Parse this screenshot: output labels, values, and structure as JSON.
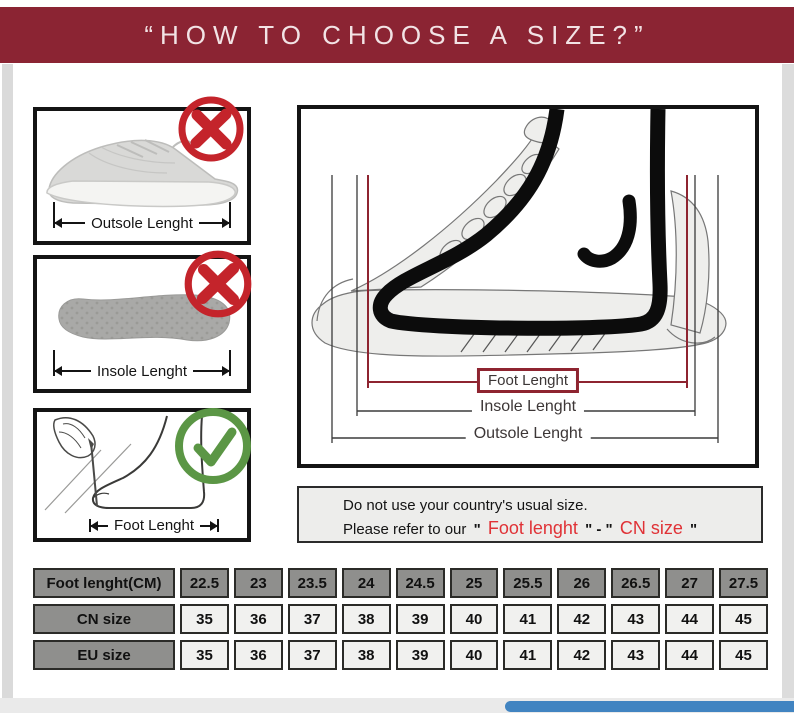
{
  "header": {
    "title": "“HOW TO CHOOSE A SIZE?”"
  },
  "colors": {
    "header_bg": "#8B2433",
    "header_text": "#F2E3E5",
    "wrong_mark_red": "#C4242B",
    "right_mark_green": "#5B9645",
    "foot_length_red": "#8E2430",
    "note_red": "#E03236",
    "table_gray": "#8F8F8D",
    "table_light": "#F1F1EF",
    "scrollbar_blue": "#4184C1"
  },
  "guide_boxes": [
    {
      "label": "Outsole Lenght",
      "verdict": "wrong",
      "icon": "x-mark"
    },
    {
      "label": "Insole Lenght",
      "verdict": "wrong",
      "icon": "x-mark"
    },
    {
      "label": "Foot Lenght",
      "verdict": "right",
      "icon": "check-mark"
    }
  ],
  "diagram": {
    "foot_label": "Foot Lenght",
    "insole_label": "Insole Lenght",
    "outsole_label": "Outsole Lenght"
  },
  "note": {
    "line1": "Do not use your country's usual size.",
    "line2_prefix": "Please refer to our",
    "q1": "\"",
    "red1": "Foot lenght",
    "q2": "\" - \"",
    "red2": "CN size",
    "q3": "\""
  },
  "size_table": {
    "rows": [
      {
        "label": "Foot lenght(CM)",
        "style": "gray",
        "values": [
          "22.5",
          "23",
          "23.5",
          "24",
          "24.5",
          "25",
          "25.5",
          "26",
          "26.5",
          "27",
          "27.5"
        ]
      },
      {
        "label": "CN size",
        "style": "light",
        "values": [
          "35",
          "36",
          "37",
          "38",
          "39",
          "40",
          "41",
          "42",
          "43",
          "44",
          "45"
        ]
      },
      {
        "label": "EU size",
        "style": "light",
        "values": [
          "35",
          "36",
          "37",
          "38",
          "39",
          "40",
          "41",
          "42",
          "43",
          "44",
          "45"
        ]
      }
    ]
  }
}
